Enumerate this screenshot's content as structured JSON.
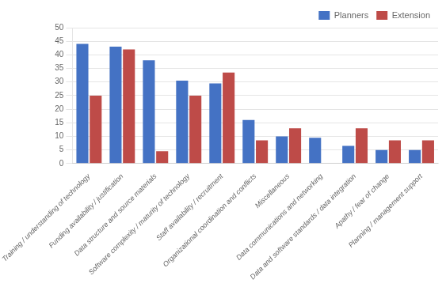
{
  "chart_data": {
    "type": "bar",
    "categories": [
      "Training / understanding of technology",
      "Funding availability / justification",
      "Data structure and source materials",
      "Software complexity / maturity of technology",
      "Staff availability / recruitment",
      "Organizational coordination and conflicts",
      "Miscellaneous",
      "Data communications and networking",
      "Data and software standards / data integration",
      "Apathy / fear of change",
      "Planning / management support"
    ],
    "series": [
      {
        "name": "Planners",
        "color": "#4472C4",
        "values": [
          44,
          43,
          38,
          30.5,
          29.5,
          16,
          10,
          9.5,
          6.5,
          5,
          5
        ]
      },
      {
        "name": "Extension",
        "color": "#BE4B48",
        "values": [
          25,
          42,
          4.5,
          25,
          33.5,
          8.5,
          13,
          0,
          13,
          8.5,
          8.5
        ]
      }
    ],
    "ylim": [
      0,
      50
    ],
    "yticks": [
      0,
      5,
      10,
      15,
      20,
      25,
      30,
      35,
      40,
      45,
      50
    ],
    "grid": true,
    "legend": "upper right"
  }
}
